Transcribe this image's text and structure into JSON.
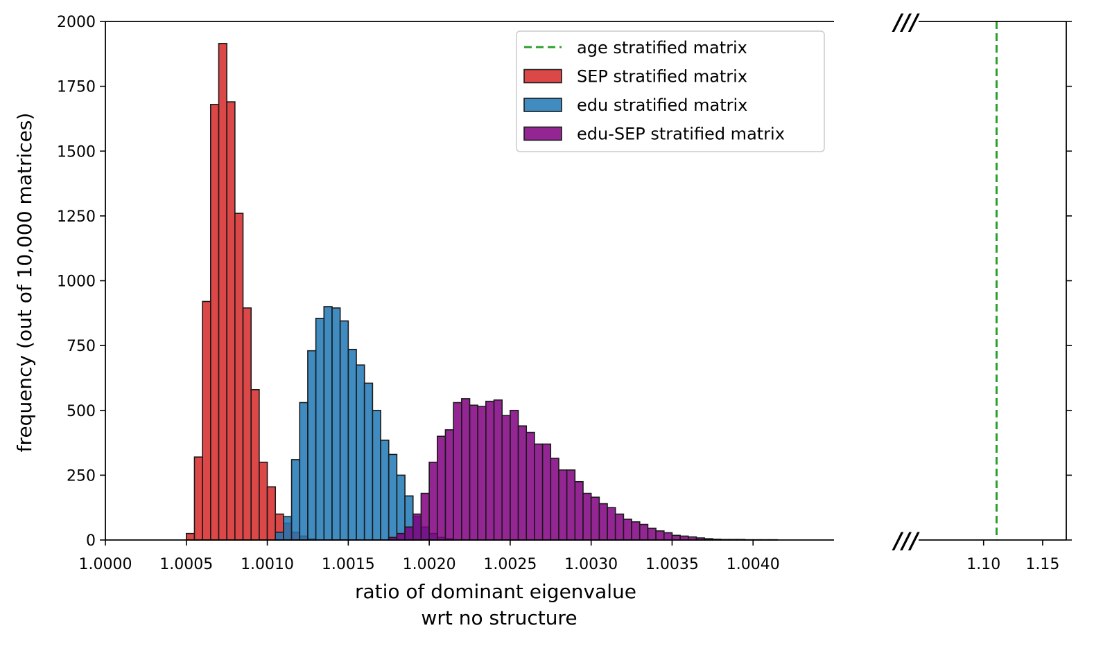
{
  "chart_data": {
    "type": "bar",
    "subtype": "histogram-broken-x-axis",
    "title": "",
    "xlabel_line1": "ratio of dominant eigenvalue",
    "xlabel_line2": "wrt no structure",
    "ylabel": "frequency (out of 10,000 matrices)",
    "ylim": [
      0,
      2000
    ],
    "y_ticks": [
      "0",
      "250",
      "500",
      "750",
      "1000",
      "1250",
      "1500",
      "1750",
      "2000"
    ],
    "left_xlim": [
      1.0,
      1.0045
    ],
    "left_x_ticks": [
      "1.0000",
      "1.0005",
      "1.0010",
      "1.0015",
      "1.0020",
      "1.0025",
      "1.0030",
      "1.0035",
      "1.0040"
    ],
    "right_xlim": [
      1.045,
      1.17
    ],
    "right_x_ticks": [
      "1.10",
      "1.15"
    ],
    "axis_break_marks": [
      "///",
      "///"
    ],
    "bin_width": 5e-05,
    "grid": false,
    "legend_position": "upper-right of left panel",
    "series": [
      {
        "name": "age stratified matrix",
        "kind": "vline",
        "color": "#2ca02c",
        "x": 1.111
      },
      {
        "name": "SEP stratified matrix",
        "kind": "histogram",
        "color": "#d62728",
        "bin_starts": [
          1.0005,
          1.00055,
          1.0006,
          1.00065,
          1.0007,
          1.00075,
          1.0008,
          1.00085,
          1.0009,
          1.00095,
          1.001,
          1.00105,
          1.0011,
          1.00115,
          1.0012,
          1.00125
        ],
        "values": [
          25,
          320,
          920,
          1680,
          1915,
          1690,
          1260,
          895,
          580,
          300,
          205,
          100,
          65,
          30,
          15,
          5
        ]
      },
      {
        "name": "edu stratified matrix",
        "kind": "histogram",
        "color": "#1f77b4",
        "bin_starts": [
          1.00105,
          1.0011,
          1.00115,
          1.0012,
          1.00125,
          1.0013,
          1.00135,
          1.0014,
          1.00145,
          1.0015,
          1.00155,
          1.0016,
          1.00165,
          1.0017,
          1.00175,
          1.0018,
          1.00185,
          1.0019,
          1.00195,
          1.002,
          1.00205,
          1.0021
        ],
        "values": [
          30,
          90,
          310,
          530,
          730,
          855,
          900,
          895,
          845,
          735,
          675,
          605,
          500,
          385,
          330,
          250,
          170,
          90,
          50,
          25,
          10,
          5
        ]
      },
      {
        "name": "edu-SEP stratified matrix",
        "kind": "histogram",
        "color": "#800080",
        "bin_starts": [
          1.00175,
          1.0018,
          1.00185,
          1.0019,
          1.00195,
          1.002,
          1.00205,
          1.0021,
          1.00215,
          1.0022,
          1.00225,
          1.0023,
          1.00235,
          1.0024,
          1.00245,
          1.0025,
          1.00255,
          1.0026,
          1.00265,
          1.0027,
          1.00275,
          1.0028,
          1.00285,
          1.0029,
          1.00295,
          1.003,
          1.00305,
          1.0031,
          1.00315,
          1.0032,
          1.00325,
          1.0033,
          1.00335,
          1.0034,
          1.00345,
          1.0035,
          1.00355,
          1.0036,
          1.00365,
          1.0037,
          1.00375,
          1.0038,
          1.00385,
          1.0039,
          1.00395,
          1.004,
          1.00405,
          1.0041
        ],
        "values": [
          10,
          25,
          50,
          100,
          180,
          300,
          400,
          425,
          530,
          545,
          520,
          515,
          535,
          540,
          480,
          500,
          440,
          415,
          370,
          370,
          315,
          270,
          270,
          225,
          180,
          165,
          140,
          125,
          100,
          80,
          70,
          60,
          45,
          35,
          28,
          18,
          15,
          12,
          8,
          5,
          3,
          2,
          2,
          2,
          1,
          1,
          1,
          1
        ]
      }
    ]
  }
}
